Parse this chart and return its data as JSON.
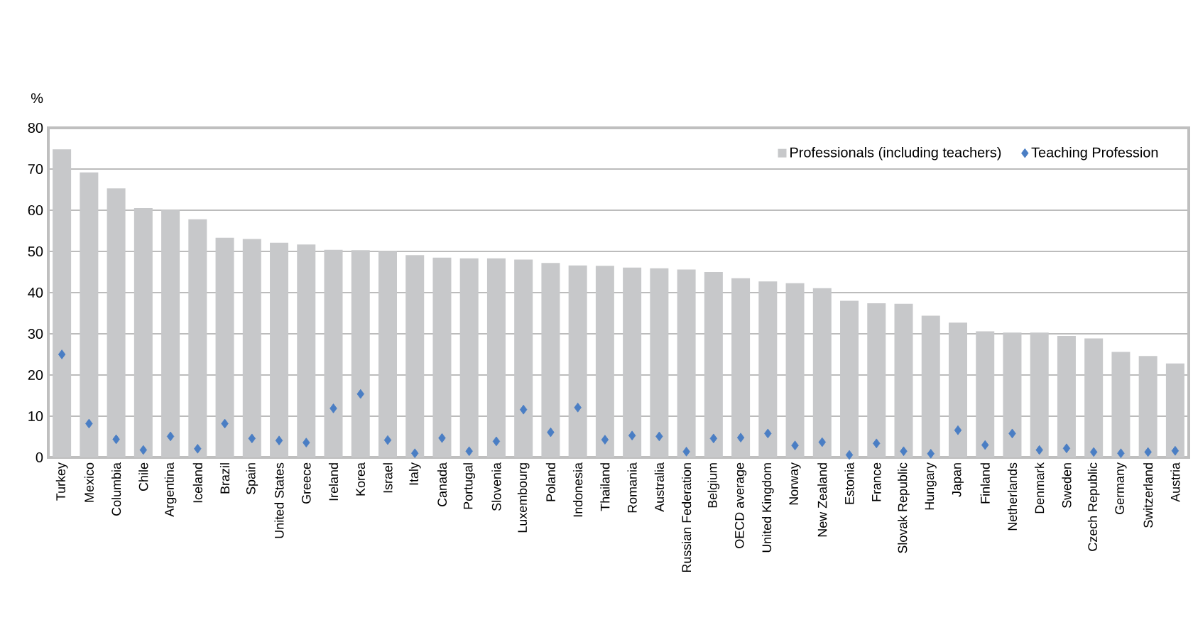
{
  "chart_data": {
    "type": "bar",
    "ylabel": "%",
    "categories": [
      "Turkey",
      "Mexico",
      "Columbia",
      "Chile",
      "Argentina",
      "Iceland",
      "Brazil",
      "Spain",
      "United States",
      "Greece",
      "Ireland",
      "Korea",
      "Israel",
      "Italy",
      "Canada",
      "Portugal",
      "Slovenia",
      "Luxembourg",
      "Poland",
      "Indonesia",
      "Thailand",
      "Romania",
      "Australia",
      "Russian Federation",
      "Belgium",
      "OECD average",
      "United Kingdom",
      "Norway",
      "New Zealand",
      "Estonia",
      "France",
      "Slovak Republic",
      "Hungary",
      "Japan",
      "Finland",
      "Netherlands",
      "Denmark",
      "Sweden",
      "Czech Republic",
      "Germany",
      "Switzerland",
      "Austria"
    ],
    "series": [
      {
        "name": "Professionals (including teachers)",
        "color": "#c7c8ca",
        "values": [
          74.8,
          69.2,
          65.3,
          60.5,
          60.1,
          57.8,
          53.3,
          53.0,
          52.1,
          51.7,
          50.4,
          50.3,
          50.1,
          49.1,
          48.5,
          48.3,
          48.3,
          48.0,
          47.2,
          46.6,
          46.5,
          46.1,
          45.9,
          45.6,
          45.0,
          43.5,
          42.7,
          42.3,
          41.1,
          38.0,
          37.4,
          37.3,
          34.4,
          32.7,
          30.6,
          30.3,
          30.3,
          29.5,
          28.9,
          25.6,
          24.6,
          22.8
        ]
      },
      {
        "name": "Teaching Profession",
        "type": "scatter",
        "color": "#4a7ec4",
        "values": [
          25.0,
          8.2,
          4.4,
          1.8,
          5.1,
          2.1,
          8.2,
          4.6,
          4.1,
          3.6,
          11.9,
          15.4,
          4.2,
          1.0,
          4.7,
          1.5,
          3.9,
          11.6,
          6.1,
          12.1,
          4.3,
          5.3,
          5.1,
          1.4,
          4.6,
          4.8,
          5.8,
          2.9,
          3.7,
          0.6,
          3.4,
          1.5,
          0.9,
          6.6,
          3.0,
          5.8,
          1.8,
          2.2,
          1.3,
          1.0,
          1.3,
          1.6
        ]
      }
    ],
    "ylim": [
      0,
      80
    ],
    "yticks": [
      0,
      10,
      20,
      30,
      40,
      50,
      60,
      70,
      80
    ],
    "grid": "y",
    "legend": "top right",
    "marker": "diamond"
  }
}
